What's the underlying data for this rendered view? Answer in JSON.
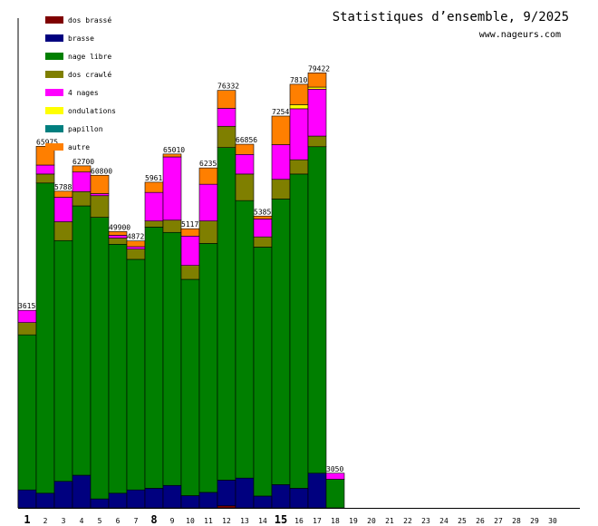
{
  "chart_data": {
    "type": "bar",
    "stacked": true,
    "title": "Statistiques d’ensemble, 9/2025",
    "subtitle": "www.nageurs.com",
    "xlabel": "",
    "ylabel": "",
    "ylim": [
      0,
      120000
    ],
    "legend_position": "top-left",
    "grid": false,
    "categories": [
      "1",
      "2",
      "3",
      "4",
      "5",
      "6",
      "7",
      "8",
      "9",
      "10",
      "11",
      "12",
      "13",
      "14",
      "15",
      "16",
      "17",
      "18",
      "19",
      "20",
      "21",
      "22",
      "23",
      "24",
      "25",
      "26",
      "27",
      "28",
      "29",
      "30"
    ],
    "bold_categories": [
      "1",
      "8",
      "15"
    ],
    "series": [
      {
        "name": "dos brassé",
        "color": "#7f0000",
        "values": [
          0,
          0,
          0,
          0,
          0,
          0,
          0,
          0,
          0,
          0,
          0,
          500,
          0,
          0,
          0,
          0,
          0,
          0,
          0,
          0,
          0,
          0,
          0,
          0,
          0,
          0,
          0,
          0,
          0,
          0
        ]
      },
      {
        "name": "brasse",
        "color": "#00007f",
        "values": [
          4400,
          3600,
          6500,
          8000,
          2200,
          3600,
          4400,
          4800,
          5500,
          3000,
          3800,
          6300,
          7300,
          2900,
          5700,
          4800,
          8500,
          0,
          0,
          0,
          0,
          0,
          0,
          0,
          0,
          0,
          0,
          0,
          0,
          0
        ]
      },
      {
        "name": "nage libre",
        "color": "#007f00",
        "values": [
          38000,
          76000,
          59000,
          66000,
          69000,
          61000,
          56500,
          64000,
          62000,
          53000,
          61000,
          81500,
          68000,
          61000,
          70000,
          77000,
          80000,
          7000,
          0,
          0,
          0,
          0,
          0,
          0,
          0,
          0,
          0,
          0,
          0,
          0
        ]
      },
      {
        "name": "dos crawlé",
        "color": "#7f7f00",
        "values": [
          3000,
          2200,
          4600,
          3500,
          5300,
          1500,
          2500,
          1500,
          3000,
          3400,
          5500,
          5200,
          6500,
          2500,
          4800,
          3500,
          2600,
          0,
          0,
          0,
          0,
          0,
          0,
          0,
          0,
          0,
          0,
          0,
          0,
          0
        ]
      },
      {
        "name": "4 nages",
        "color": "#ff00ff",
        "values": [
          3000,
          2200,
          6000,
          4800,
          500,
          700,
          600,
          7000,
          15500,
          7200,
          9000,
          4400,
          4800,
          4400,
          8500,
          12500,
          11500,
          1500,
          0,
          0,
          0,
          0,
          0,
          0,
          0,
          0,
          0,
          0,
          0,
          0
        ]
      },
      {
        "name": "ondulations",
        "color": "#ffff00",
        "values": [
          0,
          0,
          0,
          0,
          0,
          0,
          0,
          0,
          0,
          0,
          0,
          0,
          0,
          0,
          0,
          1000,
          500,
          0,
          0,
          0,
          0,
          0,
          0,
          0,
          0,
          0,
          0,
          0,
          0,
          0
        ]
      },
      {
        "name": "papillon",
        "color": "#007f7f",
        "values": [
          0,
          0,
          0,
          0,
          0,
          0,
          0,
          0,
          0,
          0,
          0,
          0,
          0,
          0,
          0,
          0,
          0,
          0,
          0,
          0,
          0,
          0,
          0,
          0,
          0,
          0,
          0,
          0,
          0,
          0
        ]
      },
      {
        "name": "autre",
        "color": "#ff7f00",
        "values": [
          0,
          4600,
          1500,
          1500,
          4500,
          900,
          1400,
          2500,
          700,
          1800,
          4000,
          4400,
          2500,
          700,
          7000,
          5000,
          3500,
          0,
          0,
          0,
          0,
          0,
          0,
          0,
          0,
          0,
          0,
          0,
          0,
          0
        ]
      }
    ],
    "labels": [
      "3615",
      "65975",
      "5788",
      "62700",
      "60800",
      "49900",
      "4872",
      "5961",
      "65010",
      "5117",
      "6235",
      "76332",
      "66856",
      "5385",
      "7254",
      "7810",
      "79422",
      "3050",
      "",
      "",
      "",
      "",
      "",
      "",
      "",
      "",
      "",
      "",
      "",
      ""
    ]
  }
}
